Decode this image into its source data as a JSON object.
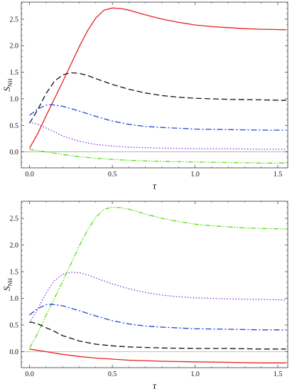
{
  "chart_data": [
    {
      "type": "line",
      "xlabel": "τ",
      "ylabel_main": "S",
      "ylabel_sub": "NH",
      "xlim": [
        -0.05,
        1.56
      ],
      "ylim": [
        -0.3,
        2.82
      ],
      "xticks": [
        0.0,
        0.5,
        1.0,
        1.5
      ],
      "xtick_labels": [
        "0.0",
        "0.5",
        "1.0",
        "1.5"
      ],
      "yticks": [
        0.0,
        0.5,
        1.0,
        1.5,
        2.0,
        2.5
      ],
      "ytick_labels": [
        "0.0",
        "0.5",
        "1.0",
        "1.5",
        "2.0",
        "2.5"
      ],
      "grid": false,
      "legend": "none",
      "reference_line_y": 0,
      "series": [
        {
          "color": "#e8201b",
          "dash": "solid",
          "x": [
            0,
            0.05,
            0.1,
            0.15,
            0.2,
            0.25,
            0.3,
            0.35,
            0.4,
            0.45,
            0.5,
            0.55,
            0.6,
            0.7,
            0.8,
            0.9,
            1.0,
            1.1,
            1.2,
            1.3,
            1.4,
            1.55
          ],
          "y": [
            0.07,
            0.35,
            0.68,
            1.0,
            1.32,
            1.65,
            1.98,
            2.28,
            2.52,
            2.67,
            2.71,
            2.7,
            2.67,
            2.58,
            2.5,
            2.44,
            2.39,
            2.36,
            2.34,
            2.32,
            2.31,
            2.3
          ]
        },
        {
          "color": "#111111",
          "dash": "8,4",
          "x": [
            0,
            0.05,
            0.1,
            0.15,
            0.2,
            0.25,
            0.3,
            0.35,
            0.4,
            0.5,
            0.6,
            0.7,
            0.8,
            0.9,
            1.0,
            1.2,
            1.4,
            1.55
          ],
          "y": [
            0.54,
            0.8,
            1.1,
            1.33,
            1.45,
            1.49,
            1.48,
            1.44,
            1.38,
            1.27,
            1.18,
            1.11,
            1.06,
            1.03,
            1.01,
            0.99,
            0.98,
            0.97
          ]
        },
        {
          "color": "#2244dd",
          "dash": "8,3,2,3",
          "x": [
            0,
            0.05,
            0.1,
            0.13,
            0.2,
            0.3,
            0.4,
            0.5,
            0.6,
            0.7,
            0.8,
            1.0,
            1.2,
            1.4,
            1.55
          ],
          "y": [
            0.69,
            0.81,
            0.88,
            0.89,
            0.86,
            0.77,
            0.67,
            0.58,
            0.52,
            0.48,
            0.46,
            0.43,
            0.42,
            0.41,
            0.41
          ]
        },
        {
          "color": "#8a2be2",
          "dash": "1.5,2.5",
          "x": [
            0,
            0.05,
            0.1,
            0.15,
            0.2,
            0.3,
            0.4,
            0.5,
            0.6,
            0.8,
            1.0,
            1.2,
            1.4,
            1.55
          ],
          "y": [
            0.56,
            0.52,
            0.45,
            0.38,
            0.3,
            0.2,
            0.14,
            0.11,
            0.09,
            0.07,
            0.06,
            0.06,
            0.05,
            0.05
          ]
        },
        {
          "color": "#55dd11",
          "dash": "7,2,1.5,2,1.5,2",
          "x": [
            0,
            0.1,
            0.2,
            0.3,
            0.4,
            0.5,
            0.6,
            0.8,
            1.0,
            1.2,
            1.4,
            1.55
          ],
          "y": [
            0.05,
            0.0,
            -0.05,
            -0.09,
            -0.12,
            -0.14,
            -0.16,
            -0.18,
            -0.19,
            -0.2,
            -0.21,
            -0.21
          ]
        }
      ]
    },
    {
      "type": "line",
      "xlabel": "τ",
      "ylabel_main": "S",
      "ylabel_sub": "NH",
      "xlim": [
        -0.05,
        1.56
      ],
      "ylim": [
        -0.3,
        2.82
      ],
      "xticks": [
        0.0,
        0.5,
        1.0,
        1.5
      ],
      "xtick_labels": [
        "0.0",
        "0.5",
        "1.0",
        "1.5"
      ],
      "yticks": [
        0.0,
        0.5,
        1.0,
        1.5,
        2.0,
        2.5
      ],
      "ytick_labels": [
        "0.0",
        "0.5",
        "1.0",
        "1.5",
        "2.0",
        "2.5"
      ],
      "grid": false,
      "legend": "none",
      "reference_line_y": 0,
      "series": [
        {
          "color": "#55dd11",
          "dash": "7,2,1.5,2,1.5,2",
          "x": [
            0,
            0.05,
            0.1,
            0.15,
            0.2,
            0.25,
            0.3,
            0.35,
            0.4,
            0.45,
            0.5,
            0.55,
            0.6,
            0.7,
            0.8,
            0.9,
            1.0,
            1.1,
            1.2,
            1.3,
            1.4,
            1.55
          ],
          "y": [
            0.07,
            0.35,
            0.68,
            1.0,
            1.32,
            1.65,
            1.98,
            2.28,
            2.52,
            2.67,
            2.71,
            2.7,
            2.67,
            2.58,
            2.5,
            2.44,
            2.39,
            2.36,
            2.34,
            2.32,
            2.31,
            2.3
          ]
        },
        {
          "color": "#8a2be2",
          "dash": "1.5,2.5",
          "x": [
            0,
            0.05,
            0.1,
            0.15,
            0.2,
            0.25,
            0.3,
            0.35,
            0.4,
            0.5,
            0.6,
            0.7,
            0.8,
            0.9,
            1.0,
            1.2,
            1.4,
            1.55
          ],
          "y": [
            0.54,
            0.8,
            1.1,
            1.33,
            1.45,
            1.49,
            1.48,
            1.44,
            1.38,
            1.27,
            1.18,
            1.11,
            1.06,
            1.03,
            1.01,
            0.99,
            0.98,
            0.97
          ]
        },
        {
          "color": "#2244dd",
          "dash": "8,3,2,3",
          "x": [
            0,
            0.05,
            0.1,
            0.13,
            0.2,
            0.3,
            0.4,
            0.5,
            0.6,
            0.7,
            0.8,
            1.0,
            1.2,
            1.4,
            1.55
          ],
          "y": [
            0.69,
            0.81,
            0.88,
            0.89,
            0.86,
            0.77,
            0.67,
            0.58,
            0.52,
            0.48,
            0.46,
            0.43,
            0.42,
            0.41,
            0.41
          ]
        },
        {
          "color": "#111111",
          "dash": "8,4",
          "x": [
            0,
            0.05,
            0.1,
            0.15,
            0.2,
            0.3,
            0.4,
            0.5,
            0.6,
            0.8,
            1.0,
            1.2,
            1.4,
            1.55
          ],
          "y": [
            0.56,
            0.52,
            0.45,
            0.38,
            0.3,
            0.2,
            0.14,
            0.11,
            0.09,
            0.07,
            0.06,
            0.06,
            0.05,
            0.05
          ]
        },
        {
          "color": "#e8201b",
          "dash": "solid",
          "x": [
            0,
            0.1,
            0.2,
            0.3,
            0.4,
            0.5,
            0.6,
            0.8,
            1.0,
            1.2,
            1.4,
            1.55
          ],
          "y": [
            0.05,
            0.0,
            -0.05,
            -0.09,
            -0.12,
            -0.14,
            -0.16,
            -0.18,
            -0.19,
            -0.2,
            -0.21,
            -0.21
          ]
        }
      ]
    }
  ]
}
